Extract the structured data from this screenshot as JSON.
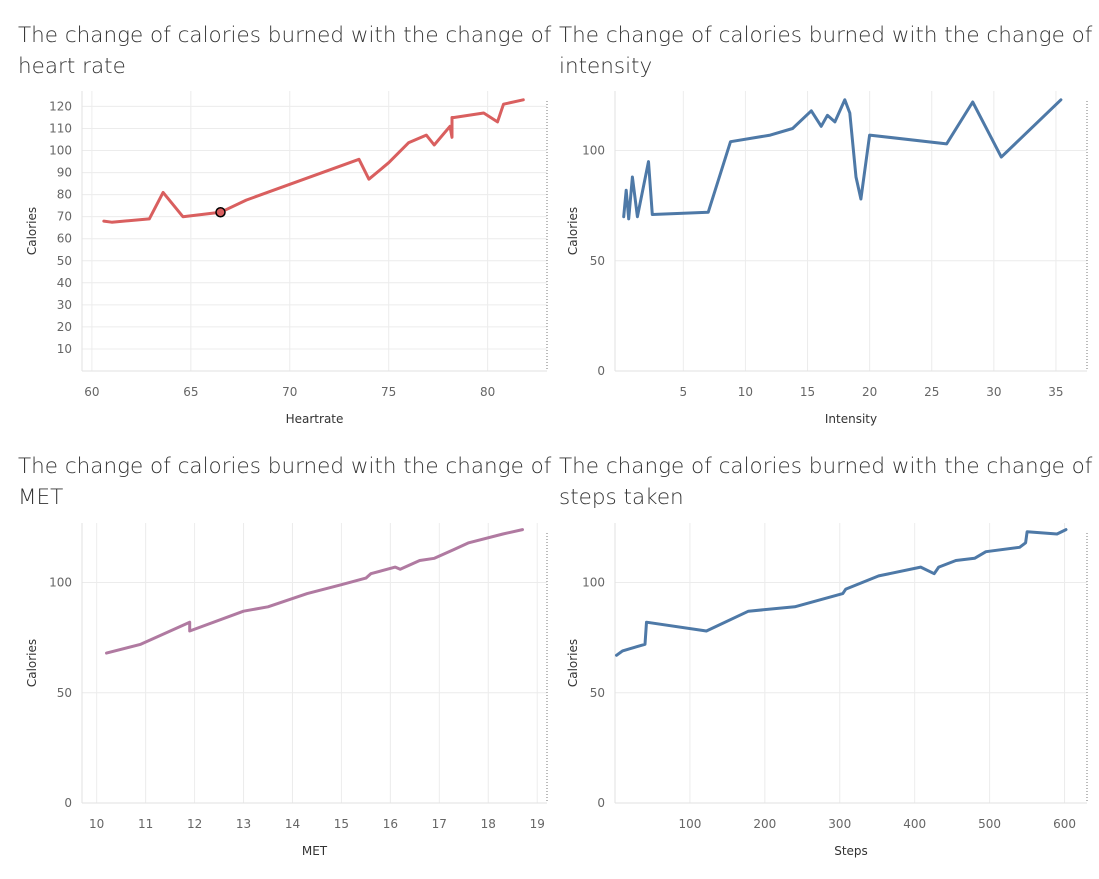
{
  "chart_data": [
    {
      "type": "line",
      "title_line1": "The change of calories burned with the change of",
      "title_line2": "heart rate",
      "xlabel": "Heartrate",
      "ylabel": "Calories",
      "xlim": [
        59.5,
        83
      ],
      "ylim": [
        0,
        127
      ],
      "xticks": [
        60,
        65,
        70,
        75,
        80
      ],
      "yticks": [
        10,
        20,
        30,
        40,
        50,
        60,
        70,
        80,
        90,
        100,
        110,
        120
      ],
      "color": "#d95f5f",
      "highlight": {
        "x": 66.5,
        "y": 72
      },
      "x": [
        60.6,
        61.0,
        62.9,
        63.6,
        64.6,
        66.5,
        67.8,
        73.5,
        74.0,
        75.0,
        76.0,
        76.9,
        77.3,
        78.1,
        78.2,
        78.2,
        78.3,
        79.8,
        80.5,
        80.8,
        81.8
      ],
      "y": [
        68,
        67.5,
        69,
        81,
        70,
        72,
        77.5,
        96,
        87,
        94.5,
        103.5,
        107,
        102.5,
        111,
        106,
        115,
        115,
        117,
        113,
        121,
        123
      ]
    },
    {
      "type": "line",
      "title_line1": "The change of calories burned with the change of",
      "title_line2": "intensity",
      "xlabel": "Intensity",
      "ylabel": "Calories",
      "xlim": [
        -0.5,
        37.5
      ],
      "ylim": [
        0,
        127
      ],
      "xticks": [
        5,
        10,
        15,
        20,
        25,
        30,
        35
      ],
      "yticks": [
        0,
        50,
        100
      ],
      "color": "#4e79a7",
      "x": [
        0.2,
        0.4,
        0.6,
        0.9,
        1.3,
        2.2,
        2.5,
        7.0,
        8.8,
        12.0,
        13.8,
        15.3,
        16.1,
        16.6,
        17.2,
        18.0,
        18.4,
        18.9,
        19.3,
        20.0,
        26.2,
        28.3,
        30.6,
        35.4
      ],
      "y": [
        70,
        82,
        69,
        88,
        70,
        95,
        71,
        72,
        104,
        107,
        110,
        118,
        111,
        116,
        113,
        123,
        117,
        88,
        78,
        107,
        103,
        122,
        97,
        123
      ]
    },
    {
      "type": "line",
      "title_line1": "The change of calories burned with the change of",
      "title_line2": "MET",
      "xlabel": "MET",
      "ylabel": "Calories",
      "xlim": [
        9.7,
        19.2
      ],
      "ylim": [
        0,
        127
      ],
      "xticks": [
        10,
        11,
        12,
        13,
        14,
        15,
        16,
        17,
        18,
        19
      ],
      "yticks": [
        0,
        50,
        100
      ],
      "color": "#b07aa1",
      "x": [
        10.2,
        10.9,
        11.9,
        11.9,
        13.0,
        13.5,
        14.3,
        15.0,
        15.5,
        15.6,
        16.1,
        16.2,
        16.6,
        16.9,
        17.3,
        17.6,
        18.3,
        18.7
      ],
      "y": [
        68,
        72,
        82,
        78,
        87,
        89,
        95,
        99,
        102,
        104,
        107,
        106,
        110,
        111,
        115,
        118,
        122,
        124
      ]
    },
    {
      "type": "line",
      "title_line1": "The change of calories burned with the change of",
      "title_line2": "steps taken",
      "xlabel": "Steps",
      "ylabel": "Calories",
      "xlim": [
        0,
        630
      ],
      "ylim": [
        0,
        127
      ],
      "xticks": [
        100,
        200,
        300,
        400,
        500,
        600
      ],
      "yticks": [
        0,
        50,
        100
      ],
      "color": "#4e79a7",
      "x": [
        2,
        10,
        20,
        40,
        42,
        122,
        178,
        240,
        304,
        308,
        352,
        408,
        426,
        432,
        455,
        480,
        495,
        540,
        548,
        550,
        590,
        602
      ],
      "y": [
        67,
        69,
        70,
        72,
        82,
        78,
        87,
        89,
        95,
        97,
        103,
        107,
        104,
        107,
        110,
        111,
        114,
        116,
        118,
        123,
        122,
        124
      ]
    }
  ]
}
